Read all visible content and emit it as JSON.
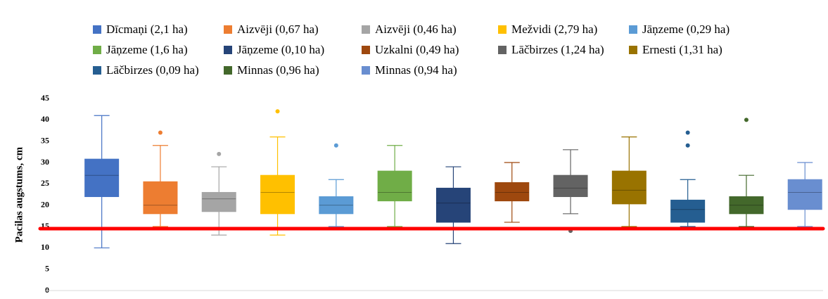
{
  "chart_data": {
    "type": "box",
    "y_label": "Pacilas augstums, cm",
    "ylim": [
      0,
      45
    ],
    "yticks": [
      0,
      5,
      10,
      15,
      20,
      25,
      30,
      35,
      40,
      45
    ],
    "reference_line": {
      "value": 14.5,
      "color": "#ff0000"
    },
    "series": [
      {
        "name": "Dīcmaņi (2,1 ha)",
        "color": "#4472c4",
        "min": 10,
        "q1": 22,
        "median": 27,
        "q3": 30.8,
        "max": 41,
        "outliers": []
      },
      {
        "name": "Aizvēji (0,67 ha)",
        "color": "#ed7d31",
        "min": 15,
        "q1": 18,
        "median": 20,
        "q3": 25.5,
        "max": 34,
        "outliers": [
          37
        ]
      },
      {
        "name": "Aizvēji (0,46 ha)",
        "color": "#a5a5a5",
        "min": 13,
        "q1": 18.5,
        "median": 21.5,
        "q3": 23,
        "max": 29,
        "outliers": [
          32
        ]
      },
      {
        "name": "Mežvidi (2,79 ha)",
        "color": "#ffc000",
        "min": 13,
        "q1": 18,
        "median": 23,
        "q3": 27,
        "max": 36,
        "outliers": [
          42
        ]
      },
      {
        "name": "Jāņzeme (0,29 ha)",
        "color": "#5b9bd5",
        "min": 15,
        "q1": 18,
        "median": 20,
        "q3": 22,
        "max": 26,
        "outliers": [
          34
        ]
      },
      {
        "name": "Jāņzeme (1,6 ha)",
        "color": "#70ad47",
        "min": 15,
        "q1": 21,
        "median": 23,
        "q3": 28,
        "max": 34,
        "outliers": []
      },
      {
        "name": "Jāņzeme (0,10 ha)",
        "color": "#264478",
        "min": 11,
        "q1": 16,
        "median": 20.5,
        "q3": 24,
        "max": 29,
        "outliers": []
      },
      {
        "name": "Uzkalni (0,49 ha)",
        "color": "#9e480e",
        "min": 16,
        "q1": 21,
        "median": 23,
        "q3": 25.3,
        "max": 30,
        "outliers": []
      },
      {
        "name": "Lāčbirzes (1,24 ha)",
        "color": "#636363",
        "min": 18,
        "q1": 22,
        "median": 24,
        "q3": 27,
        "max": 33,
        "outliers": [
          14
        ]
      },
      {
        "name": "Ernesti (1,31 ha)",
        "color": "#997300",
        "min": 15,
        "q1": 20.3,
        "median": 23.5,
        "q3": 28,
        "max": 36,
        "outliers": []
      },
      {
        "name": "Lāčbirzes (0,09 ha)",
        "color": "#255e91",
        "min": 15,
        "q1": 16,
        "median": 19,
        "q3": 21.2,
        "max": 26,
        "outliers": [
          37,
          34
        ]
      },
      {
        "name": "Minnas (0,96 ha)",
        "color": "#43682b",
        "min": 15,
        "q1": 18,
        "median": 20,
        "q3": 22,
        "max": 27,
        "outliers": [
          40
        ]
      },
      {
        "name": "Minnas (0,94 ha)",
        "color": "#698ed0",
        "min": 15,
        "q1": 19,
        "median": 23,
        "q3": 26,
        "max": 30,
        "outliers": []
      }
    ]
  }
}
